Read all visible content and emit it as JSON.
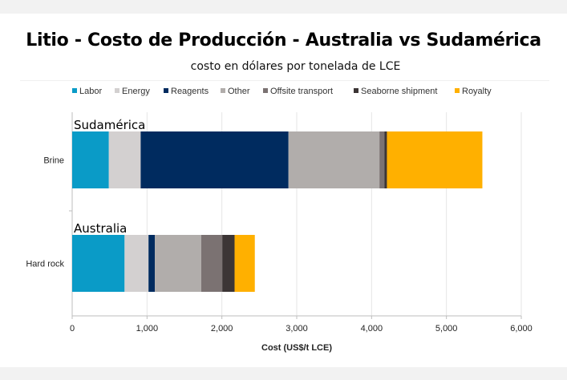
{
  "title": "Litio - Costo de Producción - Australia vs Sudamérica",
  "subtitle": "costo en dólares por tonelada de LCE",
  "chart_data": {
    "type": "bar",
    "orientation": "horizontal",
    "stacked": true,
    "categories": [
      "Brine",
      "Hard rock"
    ],
    "annotations": [
      "Sudamérica",
      "Australia"
    ],
    "series": [
      {
        "name": "Labor",
        "color": "#0a9bc7",
        "values": [
          490,
          700
        ]
      },
      {
        "name": "Energy",
        "color": "#d3d0d0",
        "values": [
          425,
          320
        ]
      },
      {
        "name": "Reagents",
        "color": "#002b5f",
        "values": [
          1975,
          85
        ]
      },
      {
        "name": "Other",
        "color": "#b1adab",
        "values": [
          1215,
          620
        ]
      },
      {
        "name": "Offsite transport",
        "color": "#7b7272",
        "values": [
          65,
          280
        ]
      },
      {
        "name": "Seaborne shipment",
        "color": "#3c3535",
        "values": [
          35,
          165
        ]
      },
      {
        "name": "Royalty",
        "color": "#ffb000",
        "values": [
          1275,
          270
        ]
      }
    ],
    "xlabel": "Cost (US$/t LCE)",
    "ylabel": "",
    "xlim": [
      0,
      6000
    ],
    "xticks": [
      0,
      1000,
      2000,
      3000,
      4000,
      5000,
      6000
    ],
    "xtick_labels": [
      "0",
      "1,000",
      "2,000",
      "3,000",
      "4,000",
      "5,000",
      "6,000"
    ],
    "grid": true,
    "legend": "top"
  }
}
